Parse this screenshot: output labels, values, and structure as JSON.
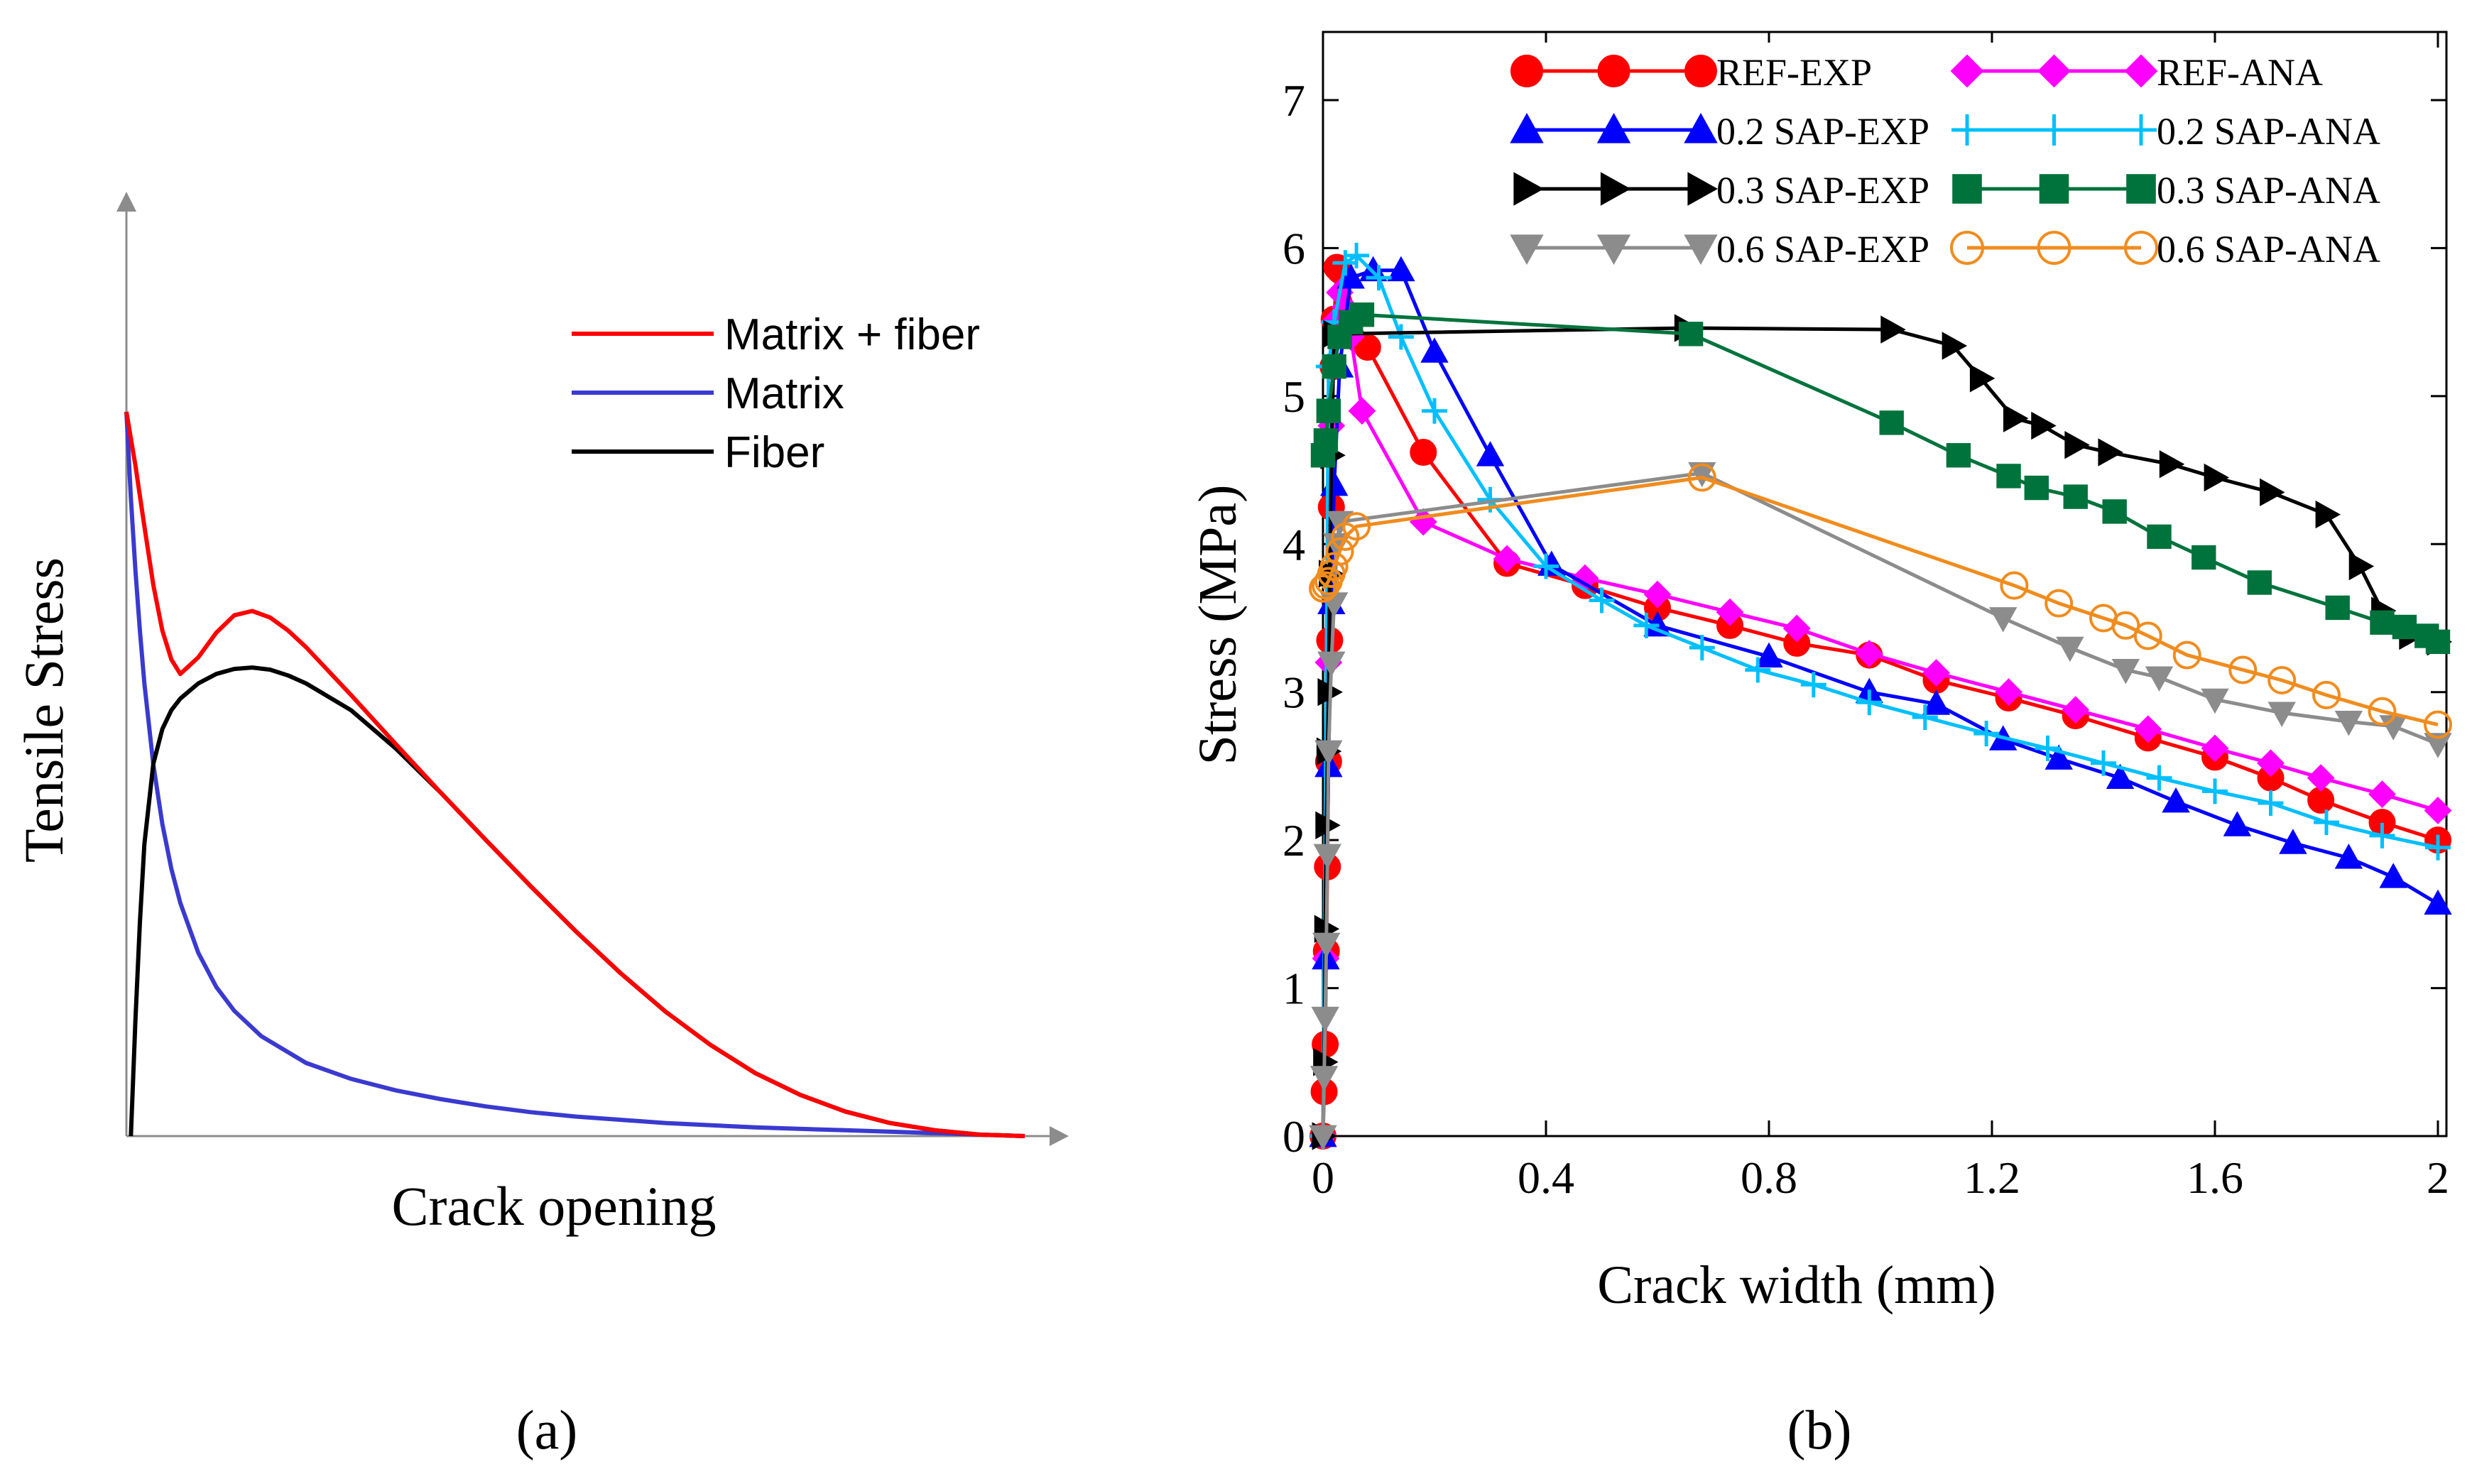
{
  "panel_labels": {
    "a": "(a)",
    "b": "(b)"
  },
  "chart_data": [
    {
      "id": "a",
      "type": "line",
      "xlabel": "Crack opening",
      "ylabel": "Tensile Stress",
      "xlim": [
        0,
        10
      ],
      "ylim": [
        0,
        10
      ],
      "grid": false,
      "legend": "top-right",
      "series": [
        {
          "name": "Matrix + fiber",
          "color": "#ff0000",
          "x": [
            0,
            0.1,
            0.2,
            0.3,
            0.4,
            0.5,
            0.6,
            0.8,
            1.0,
            1.2,
            1.4,
            1.6,
            1.8,
            2.0,
            2.5,
            3.0,
            3.5,
            4.0,
            4.5,
            5.0,
            5.5,
            6.0,
            6.5,
            7.0,
            7.5,
            8.0,
            8.5,
            9.0,
            9.5,
            10.0
          ],
          "y": [
            10.0,
            9.26,
            8.42,
            7.61,
            6.98,
            6.58,
            6.38,
            6.61,
            6.95,
            7.19,
            7.25,
            7.16,
            6.98,
            6.75,
            6.09,
            5.41,
            4.74,
            4.09,
            3.45,
            2.83,
            2.25,
            1.72,
            1.26,
            0.87,
            0.57,
            0.34,
            0.18,
            0.08,
            0.02,
            0.0
          ]
        },
        {
          "name": "Matrix",
          "color": "#3a3ad0",
          "x": [
            0,
            0.05,
            0.1,
            0.15,
            0.2,
            0.3,
            0.4,
            0.5,
            0.6,
            0.8,
            1.0,
            1.2,
            1.5,
            2.0,
            2.5,
            3.0,
            3.5,
            4.0,
            4.5,
            5.0,
            6.0,
            7.0,
            8.0,
            9.0,
            10.0
          ],
          "y": [
            10.0,
            8.81,
            7.81,
            6.98,
            6.25,
            5.13,
            4.31,
            3.69,
            3.22,
            2.53,
            2.06,
            1.73,
            1.38,
            1.01,
            0.79,
            0.63,
            0.51,
            0.41,
            0.33,
            0.27,
            0.18,
            0.12,
            0.08,
            0.04,
            0.0
          ]
        },
        {
          "name": "Fiber",
          "color": "#000000",
          "x": [
            0.05,
            0.1,
            0.15,
            0.2,
            0.3,
            0.4,
            0.5,
            0.6,
            0.8,
            1.0,
            1.2,
            1.4,
            1.6,
            1.8,
            2.0,
            2.5,
            3.0,
            3.5,
            4.0,
            4.5,
            5.0,
            5.5,
            6.0,
            6.5,
            7.0,
            7.5,
            8.0,
            8.5,
            9.0,
            9.5,
            10.0
          ],
          "y": [
            0.0,
            1.6,
            2.95,
            4.03,
            5.14,
            5.62,
            5.88,
            6.04,
            6.25,
            6.38,
            6.45,
            6.47,
            6.44,
            6.36,
            6.25,
            5.88,
            5.35,
            4.74,
            4.09,
            3.45,
            2.83,
            2.25,
            1.72,
            1.26,
            0.87,
            0.57,
            0.34,
            0.18,
            0.08,
            0.02,
            0.0
          ]
        }
      ]
    },
    {
      "id": "b",
      "type": "line",
      "xlabel": "Crack width (mm)",
      "ylabel": "Stress (MPa)",
      "xlim": [
        0,
        2
      ],
      "ylim": [
        0,
        7.5
      ],
      "xticks": [
        "0",
        "0.4",
        "0.8",
        "1.2",
        "1.6",
        "2"
      ],
      "yticks": [
        "0",
        "1",
        "2",
        "3",
        "4",
        "5",
        "6",
        "7"
      ],
      "xtick_values": [
        0,
        0.4,
        0.8,
        1.2,
        1.6,
        2.0
      ],
      "ytick_values": [
        0,
        1,
        2,
        3,
        4,
        5,
        6,
        7
      ],
      "grid": false,
      "legend": "top-right",
      "series": [
        {
          "name": "REF-EXP",
          "color": "#ff0000",
          "marker": "circle",
          "filled": true,
          "x": [
            0,
            0.002,
            0.004,
            0.006,
            0.008,
            0.01,
            0.012,
            0.015,
            0.018,
            0.02,
            0.025,
            0.03,
            0.08,
            0.18,
            0.33,
            0.47,
            0.6,
            0.73,
            0.85,
            0.98,
            1.1,
            1.23,
            1.35,
            1.48,
            1.6,
            1.7,
            1.79,
            1.9,
            2.0
          ],
          "y": [
            0,
            0.3,
            0.62,
            1.25,
            1.82,
            2.53,
            3.35,
            4.25,
            5.2,
            5.52,
            5.87,
            5.85,
            5.33,
            4.62,
            3.87,
            3.72,
            3.57,
            3.45,
            3.33,
            3.25,
            3.08,
            2.96,
            2.84,
            2.69,
            2.56,
            2.42,
            2.27,
            2.12,
            2.0
          ]
        },
        {
          "name": "REF-ANA",
          "color": "#ff00ff",
          "marker": "diamond",
          "filled": true,
          "x": [
            0,
            0.005,
            0.01,
            0.015,
            0.02,
            0.03,
            0.04,
            0.05,
            0.07,
            0.18,
            0.33,
            0.47,
            0.6,
            0.73,
            0.85,
            0.98,
            1.1,
            1.23,
            1.35,
            1.48,
            1.6,
            1.7,
            1.79,
            1.9,
            2.0
          ],
          "y": [
            0,
            1.2,
            3.2,
            4.8,
            5.5,
            5.7,
            5.6,
            5.4,
            4.9,
            4.15,
            3.9,
            3.77,
            3.66,
            3.54,
            3.43,
            3.26,
            3.13,
            3.0,
            2.88,
            2.75,
            2.62,
            2.52,
            2.42,
            2.31,
            2.2
          ]
        },
        {
          "name": "0.2 SAP-EXP",
          "color": "#0000ff",
          "marker": "triangle-up",
          "filled": true,
          "x": [
            0,
            0.005,
            0.01,
            0.015,
            0.02,
            0.03,
            0.05,
            0.09,
            0.14,
            0.2,
            0.3,
            0.41,
            0.6,
            0.8,
            0.98,
            1.1,
            1.22,
            1.32,
            1.43,
            1.53,
            1.64,
            1.74,
            1.84,
            1.92,
            2.0
          ],
          "y": [
            0,
            1.2,
            2.5,
            3.6,
            4.4,
            5.2,
            5.8,
            5.85,
            5.85,
            5.3,
            4.6,
            3.86,
            3.45,
            3.24,
            3.0,
            2.92,
            2.68,
            2.55,
            2.42,
            2.26,
            2.1,
            1.98,
            1.88,
            1.75,
            1.57
          ]
        },
        {
          "name": "0.2 SAP-ANA",
          "color": "#00bfff",
          "marker": "plus",
          "filled": false,
          "x": [
            0,
            0.01,
            0.02,
            0.04,
            0.06,
            0.1,
            0.14,
            0.2,
            0.3,
            0.4,
            0.5,
            0.58,
            0.68,
            0.78,
            0.88,
            0.98,
            1.08,
            1.19,
            1.3,
            1.4,
            1.5,
            1.6,
            1.7,
            1.8,
            1.9,
            2.0
          ],
          "y": [
            0,
            5.2,
            5.5,
            5.9,
            5.95,
            5.8,
            5.4,
            4.9,
            4.3,
            3.85,
            3.62,
            3.45,
            3.3,
            3.15,
            3.05,
            2.93,
            2.83,
            2.72,
            2.62,
            2.52,
            2.42,
            2.33,
            2.25,
            2.12,
            2.03,
            1.95
          ]
        },
        {
          "name": "0.3 SAP-EXP",
          "color": "#000000",
          "marker": "triangle-right",
          "filled": true,
          "x": [
            0,
            0.002,
            0.004,
            0.006,
            0.008,
            0.01,
            0.012,
            0.015,
            0.02,
            0.65,
            1.02,
            1.13,
            1.18,
            1.24,
            1.29,
            1.35,
            1.41,
            1.52,
            1.6,
            1.7,
            1.8,
            1.86,
            1.9,
            1.95,
            2.0
          ],
          "y": [
            0,
            0.5,
            1.4,
            2.1,
            2.6,
            3.0,
            3.8,
            4.6,
            5.42,
            5.46,
            5.45,
            5.34,
            5.12,
            4.85,
            4.8,
            4.67,
            4.62,
            4.54,
            4.45,
            4.35,
            4.2,
            3.85,
            3.55,
            3.38,
            3.34
          ]
        },
        {
          "name": "0.3 SAP-ANA",
          "color": "#00733c",
          "marker": "square",
          "filled": true,
          "x": [
            0,
            0.005,
            0.01,
            0.02,
            0.03,
            0.05,
            0.07,
            0.66,
            1.02,
            1.14,
            1.23,
            1.28,
            1.35,
            1.42,
            1.5,
            1.58,
            1.68,
            1.82,
            1.9,
            1.94,
            1.98,
            2.0
          ],
          "y": [
            4.6,
            4.7,
            4.9,
            5.2,
            5.4,
            5.5,
            5.55,
            5.42,
            4.82,
            4.6,
            4.46,
            4.38,
            4.32,
            4.22,
            4.05,
            3.91,
            3.74,
            3.57,
            3.47,
            3.44,
            3.38,
            3.34
          ]
        },
        {
          "name": "0.6 SAP-EXP",
          "color": "#8c8c8c",
          "marker": "triangle-down",
          "filled": true,
          "x": [
            0,
            0.002,
            0.004,
            0.006,
            0.008,
            0.01,
            0.015,
            0.02,
            0.025,
            0.03,
            0.68,
            1.22,
            1.34,
            1.44,
            1.5,
            1.6,
            1.72,
            1.84,
            1.92,
            2.0
          ],
          "y": [
            0,
            0.4,
            0.8,
            1.3,
            1.9,
            2.6,
            3.2,
            3.6,
            4.0,
            4.15,
            4.48,
            3.5,
            3.3,
            3.15,
            3.1,
            2.95,
            2.86,
            2.8,
            2.77,
            2.65
          ]
        },
        {
          "name": "0.6 SAP-ANA",
          "color": "#f08c1e",
          "marker": "circle",
          "filled": false,
          "x": [
            0,
            0.005,
            0.01,
            0.015,
            0.02,
            0.03,
            0.04,
            0.06,
            0.68,
            1.24,
            1.32,
            1.4,
            1.44,
            1.48,
            1.55,
            1.65,
            1.72,
            1.8,
            1.9,
            2.0
          ],
          "y": [
            3.7,
            3.72,
            3.75,
            3.8,
            3.85,
            3.95,
            4.05,
            4.12,
            4.45,
            3.72,
            3.6,
            3.5,
            3.45,
            3.38,
            3.25,
            3.15,
            3.08,
            2.98,
            2.87,
            2.78
          ]
        }
      ]
    }
  ]
}
